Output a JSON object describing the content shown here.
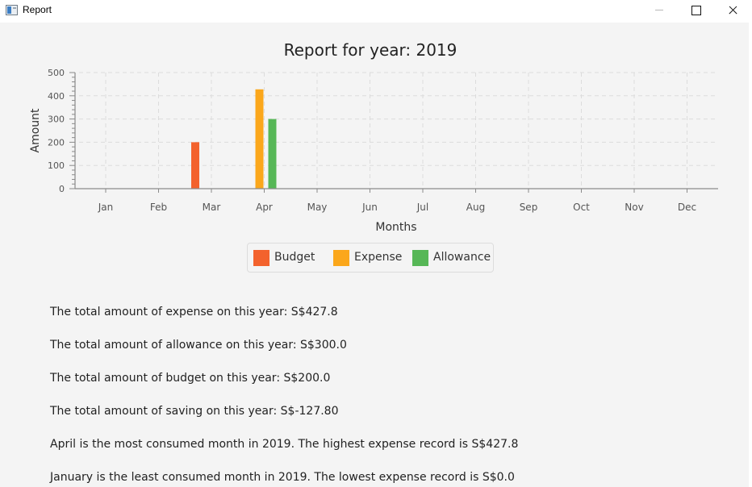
{
  "window": {
    "title": "Report",
    "minimize_icon": "minimize-icon",
    "maximize_icon": "maximize-icon",
    "close_icon": "close-icon"
  },
  "colors": {
    "budget": "#f3622d",
    "expense": "#fba71b",
    "allowance": "#57b757",
    "axis": "#8a8a8a",
    "grid": "#dcdcdc",
    "tick_text": "#555555"
  },
  "chart_data": {
    "type": "bar",
    "title": "Report for year: 2019",
    "xlabel": "Months",
    "ylabel": "Amount",
    "ylim": [
      0,
      500
    ],
    "y_ticks": [
      0,
      100,
      200,
      300,
      400,
      500
    ],
    "grid": true,
    "legend_position": "bottom",
    "categories": [
      "Jan",
      "Feb",
      "Mar",
      "Apr",
      "May",
      "Jun",
      "Jul",
      "Aug",
      "Sep",
      "Oct",
      "Nov",
      "Dec"
    ],
    "series": [
      {
        "name": "Budget",
        "color": "#f3622d",
        "values": [
          0,
          0,
          200,
          0,
          0,
          0,
          0,
          0,
          0,
          0,
          0,
          0
        ]
      },
      {
        "name": "Expense",
        "color": "#fba71b",
        "values": [
          0,
          0,
          0,
          427.8,
          0,
          0,
          0,
          0,
          0,
          0,
          0,
          0
        ]
      },
      {
        "name": "Allowance",
        "color": "#57b757",
        "values": [
          0,
          0,
          0,
          300,
          0,
          0,
          0,
          0,
          0,
          0,
          0,
          0
        ]
      }
    ]
  },
  "summary": {
    "lines": [
      "The total amount of expense on this year: S$427.8",
      "The total amount of allowance on this year: S$300.0",
      "The total amount of budget on this year: S$200.0",
      "The total amount of saving on this year: S$-127.80",
      "April is the most consumed month in 2019. The highest expense record is S$427.8",
      "January is the least consumed month in 2019. The lowest expense record is S$0.0"
    ]
  }
}
